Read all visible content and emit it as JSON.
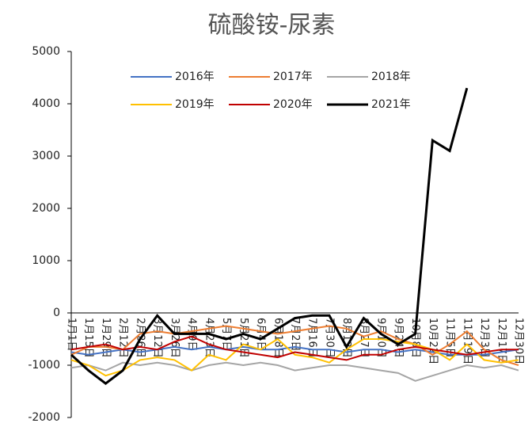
{
  "chart_data": {
    "type": "line",
    "title": "硫酸铵-尿素",
    "categories": [
      "1月1日",
      "1月15日",
      "1月29日",
      "2月12日",
      "2月26日",
      "3月12日",
      "3月26日",
      "4月9日",
      "4月23日",
      "5月7日",
      "5月21日",
      "6月4日",
      "6月18日",
      "7月2日",
      "7月16日",
      "7月30日",
      "8月13日",
      "8月27日",
      "9月10日",
      "9月24日",
      "10月8日",
      "10月22日",
      "11月5日",
      "11月19日",
      "12月3日",
      "12月17日",
      "12月30日"
    ],
    "series": [
      {
        "name": "2016年",
        "color": "#4472c4",
        "values": [
          -750,
          -800,
          -750,
          -700,
          -750,
          -700,
          -650,
          -700,
          -650,
          -700,
          -650,
          -700,
          -700,
          -650,
          -700,
          -700,
          -750,
          -700,
          -700,
          -750,
          -700,
          -750,
          -800,
          -800,
          -800,
          -750,
          -700
        ]
      },
      {
        "name": "2017年",
        "color": "#ed7d31",
        "values": [
          -800,
          -650,
          -650,
          -700,
          -400,
          -350,
          -400,
          -350,
          -300,
          -250,
          -300,
          -350,
          -400,
          -350,
          -300,
          -250,
          -300,
          -450,
          -350,
          -500,
          -600,
          -800,
          -600,
          -350,
          -700,
          -900,
          -1000
        ]
      },
      {
        "name": "2018年",
        "color": "#a5a5a5",
        "values": [
          -1050,
          -1000,
          -1100,
          -950,
          -1000,
          -950,
          -1000,
          -1100,
          -1000,
          -950,
          -1000,
          -950,
          -1000,
          -1100,
          -1050,
          -1000,
          -1000,
          -1050,
          -1100,
          -1150,
          -1300,
          -1200,
          -1100,
          -1000,
          -1050,
          -1000,
          -1100
        ]
      },
      {
        "name": "2019年",
        "color": "#ffc000",
        "values": [
          -900,
          -1000,
          -1200,
          -1100,
          -900,
          -850,
          -900,
          -1100,
          -800,
          -900,
          -600,
          -700,
          -500,
          -800,
          -850,
          -950,
          -700,
          -500,
          -500,
          -550,
          -600,
          -700,
          -900,
          -600,
          -900,
          -950,
          -900
        ]
      },
      {
        "name": "2020年",
        "color": "#c00000",
        "values": [
          -700,
          -650,
          -600,
          -700,
          -650,
          -700,
          -550,
          -450,
          -600,
          -700,
          -750,
          -800,
          -850,
          -750,
          -800,
          -850,
          -900,
          -800,
          -800,
          -700,
          -650,
          -700,
          -750,
          -800,
          -750,
          -700,
          -700
        ]
      },
      {
        "name": "2021年",
        "color": "#000000",
        "values": [
          -800,
          -1100,
          -1350,
          -1100,
          -500,
          -50,
          -400,
          -400,
          -400,
          -500,
          -400,
          -500,
          -300,
          -100,
          -50,
          -50,
          -650,
          -100,
          -400,
          -600,
          -400,
          3300,
          3100,
          4300,
          null,
          null,
          null
        ]
      }
    ],
    "ylim": [
      -2000,
      5000
    ],
    "yticks": [
      -2000,
      -1000,
      0,
      1000,
      2000,
      3000,
      4000,
      5000
    ]
  }
}
